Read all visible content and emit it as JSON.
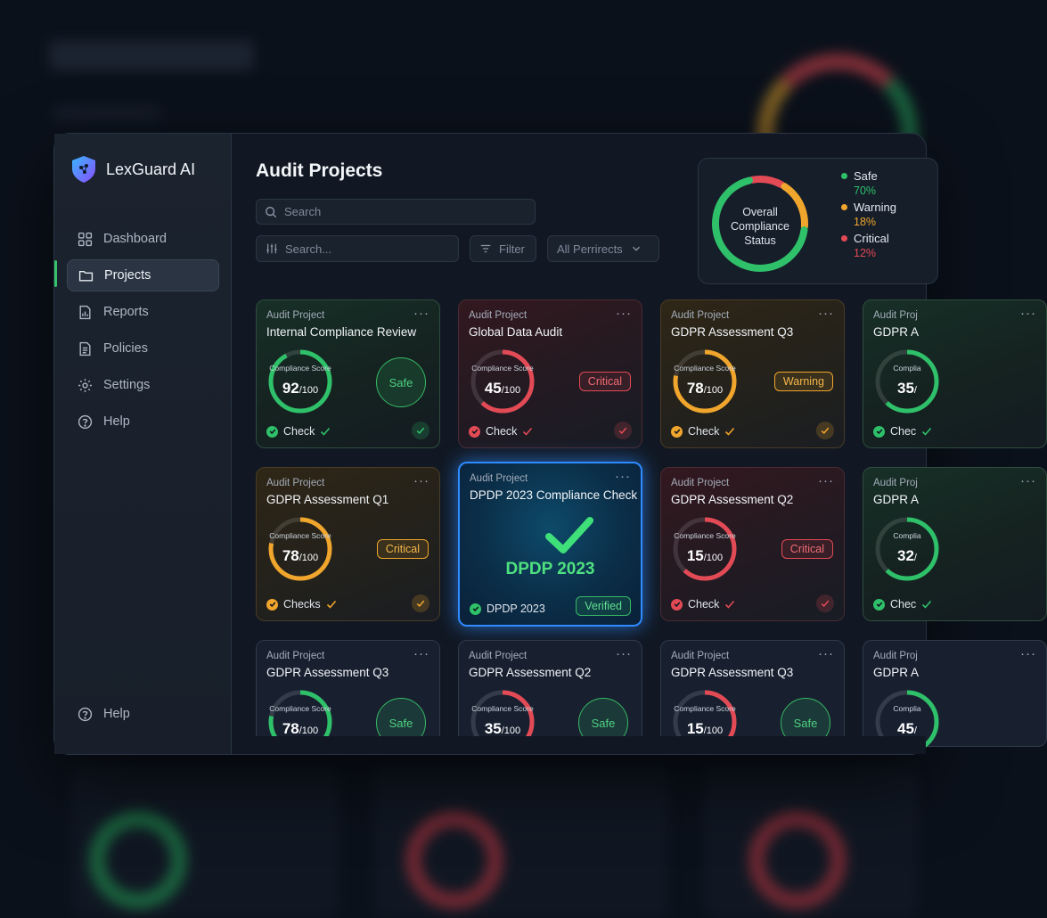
{
  "app": {
    "name": "LexGuard AI"
  },
  "sidebar": {
    "items": [
      {
        "label": "Dashboard",
        "icon": "grid-icon"
      },
      {
        "label": "Projects",
        "icon": "folder-icon",
        "active": true
      },
      {
        "label": "Reports",
        "icon": "report-icon"
      },
      {
        "label": "Policies",
        "icon": "document-icon"
      },
      {
        "label": "Settings",
        "icon": "gear-icon"
      },
      {
        "label": "Help",
        "icon": "help-icon"
      }
    ],
    "footer_help": "Help"
  },
  "main": {
    "title": "Audit Projects",
    "search_placeholder": "Search",
    "search2_placeholder": "Search...",
    "filter_label": "Filter",
    "projects_select": "All Perrirects"
  },
  "status": {
    "title_line1": "Overall",
    "title_line2": "Compliance",
    "title_line3": "Status",
    "legend": [
      {
        "name": "Safe",
        "value": "70%",
        "color": "#2fc06a",
        "fraction": 0.7
      },
      {
        "name": "Warning",
        "value": "18%",
        "color": "#f0a52c",
        "fraction": 0.18
      },
      {
        "name": "Critical",
        "value": "12%",
        "color": "#e24a55",
        "fraction": 0.12
      }
    ]
  },
  "cards": [
    {
      "kind": "Audit Project",
      "title": "Internal Compliance Review",
      "gauge_label": "Compliance Score",
      "score": "92",
      "max": "/100",
      "fraction": 0.92,
      "tone": "green",
      "badge": "Safe",
      "badge_type": "circle",
      "foot": "Check"
    },
    {
      "kind": "Audit Project",
      "title": "Global Data Audit",
      "gauge_label": "Compliance Score",
      "score": "45",
      "max": "/100",
      "fraction": 0.45,
      "tone": "red",
      "badge": "Critical",
      "badge_type": "pill",
      "foot": "Check"
    },
    {
      "kind": "Audit Project",
      "title": "GDPR Assessment Q3",
      "gauge_label": "Compliance Score",
      "score": "78",
      "max": "/100",
      "fraction": 0.78,
      "tone": "amber",
      "badge": "Warning",
      "badge_type": "pill",
      "foot": "Check"
    },
    {
      "kind": "Audit Proj",
      "title": "GDPR A",
      "gauge_label": "Complia",
      "score": "35",
      "max": "/",
      "fraction": 0.35,
      "tone": "green",
      "badge": "",
      "badge_type": "none",
      "foot": "Chec"
    },
    {
      "kind": "Audit Project",
      "title": "GDPR Assessment Q1",
      "gauge_label": "Compliance Score",
      "score": "78",
      "max": "/100",
      "fraction": 0.78,
      "tone": "amber",
      "badge": "Critical",
      "badge_type": "pill",
      "foot": "Checks"
    },
    {
      "kind": "Audit Project",
      "title": "DPDP 2023 Compliance Check",
      "big_label": "DPDP 2023",
      "tone": "highlight",
      "foot": "DPDP 2023",
      "verified": "Verified"
    },
    {
      "kind": "Audit Project",
      "title": "GDPR Assessment Q2",
      "gauge_label": "Compliance Score",
      "score": "15",
      "max": "/100",
      "fraction": 0.15,
      "tone": "red",
      "badge": "Critical",
      "badge_type": "pill",
      "foot": "Check"
    },
    {
      "kind": "Audit Proj",
      "title": "GDPR A",
      "gauge_label": "Complia",
      "score": "32",
      "max": "/",
      "fraction": 0.32,
      "tone": "green",
      "badge": "",
      "badge_type": "none",
      "foot": "Chec"
    },
    {
      "kind": "Audit Project",
      "title": "GDPR Assessment Q3",
      "gauge_label": "Compliance Score",
      "score": "78",
      "max": "/100",
      "fraction": 0.78,
      "tone": "plain",
      "gauge_color": "#2fc06a",
      "badge": "Safe",
      "badge_type": "circle",
      "foot": ""
    },
    {
      "kind": "Audit Project",
      "title": "GDPR Assessment Q2",
      "gauge_label": "Compliance Score",
      "score": "35",
      "max": "/100",
      "fraction": 0.35,
      "tone": "plain",
      "gauge_color": "#e24a55",
      "badge": "Safe",
      "badge_type": "circle",
      "foot": ""
    },
    {
      "kind": "Audit Project",
      "title": "GDPR Assessment Q3",
      "gauge_label": "Compliance Score",
      "score": "15",
      "max": "/100",
      "fraction": 0.15,
      "tone": "plain",
      "gauge_color": "#e24a55",
      "badge": "Safe",
      "badge_type": "circle",
      "foot": ""
    },
    {
      "kind": "Audit Proj",
      "title": "GDPR A",
      "gauge_label": "Complia",
      "score": "45",
      "max": "/",
      "fraction": 0.45,
      "tone": "plain",
      "gauge_color": "#2fc06a",
      "badge": "",
      "badge_type": "none",
      "foot": ""
    }
  ],
  "colors": {
    "green": "#2fc06a",
    "red": "#e24a55",
    "amber": "#f0a52c",
    "blue": "#2f8bff"
  }
}
